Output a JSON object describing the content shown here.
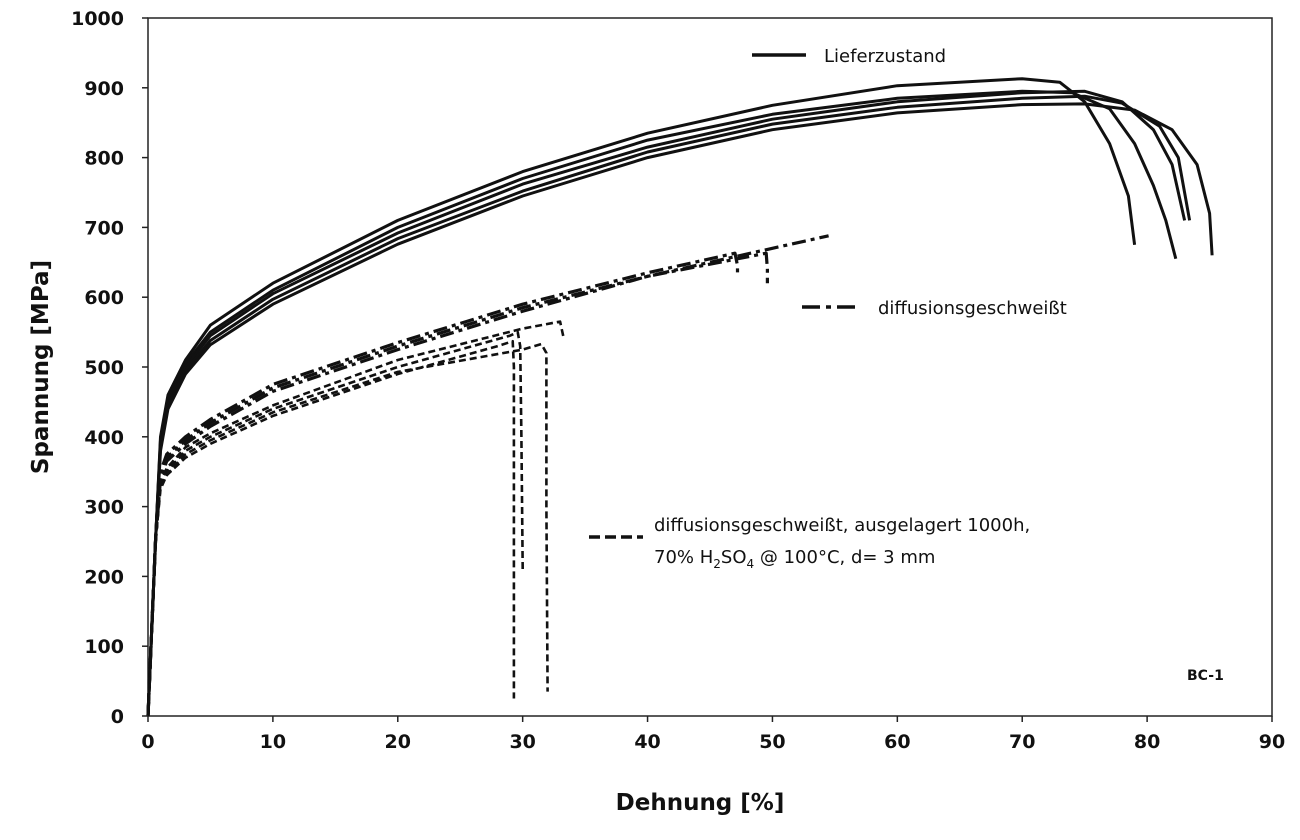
{
  "chart_data": {
    "type": "line",
    "xlabel": "Dehnung [%]",
    "ylabel": "Spannung [MPa]",
    "xlim": [
      0,
      90
    ],
    "ylim": [
      0,
      1000
    ],
    "xticks": [
      "0",
      "10",
      "20",
      "30",
      "40",
      "50",
      "60",
      "70",
      "80",
      "90"
    ],
    "yticks": [
      "0",
      "100",
      "200",
      "300",
      "400",
      "500",
      "600",
      "700",
      "800",
      "900",
      "1000"
    ],
    "grid": false,
    "annotation": "BC-1",
    "legend": [
      {
        "label": "Lieferzustand",
        "style": "solid"
      },
      {
        "label": "diffusionsgeschweißt",
        "style": "dashdot"
      },
      {
        "label_line1": "diffusionsgeschweißt, ausgelagert 1000h,",
        "label_line2_pre": "70% H",
        "label_line2_sub1": "2",
        "label_line2_mid": "SO",
        "label_line2_sub2": "4",
        "label_line2_post": " @ 100°C, d= 3 mm",
        "style": "dashed"
      }
    ],
    "series": [
      {
        "group": "Lieferzustand",
        "style": "solid",
        "points": [
          [
            0,
            0
          ],
          [
            0.6,
            250
          ],
          [
            1.0,
            400
          ],
          [
            1.6,
            460
          ],
          [
            3,
            510
          ],
          [
            5,
            560
          ],
          [
            10,
            620
          ],
          [
            20,
            710
          ],
          [
            30,
            780
          ],
          [
            40,
            835
          ],
          [
            50,
            875
          ],
          [
            60,
            903
          ],
          [
            70,
            913
          ],
          [
            73,
            908
          ],
          [
            75,
            880
          ],
          [
            77,
            820
          ],
          [
            78.5,
            745
          ],
          [
            79,
            675
          ]
        ]
      },
      {
        "group": "Lieferzustand",
        "style": "solid",
        "points": [
          [
            0,
            0
          ],
          [
            0.6,
            250
          ],
          [
            1.0,
            395
          ],
          [
            1.6,
            455
          ],
          [
            3,
            505
          ],
          [
            5,
            550
          ],
          [
            10,
            610
          ],
          [
            20,
            700
          ],
          [
            30,
            770
          ],
          [
            40,
            825
          ],
          [
            50,
            862
          ],
          [
            60,
            885
          ],
          [
            70,
            895
          ],
          [
            74,
            893
          ],
          [
            77,
            870
          ],
          [
            79,
            820
          ],
          [
            80.5,
            760
          ],
          [
            81.5,
            710
          ],
          [
            82.3,
            655
          ]
        ]
      },
      {
        "group": "Lieferzustand",
        "style": "solid",
        "points": [
          [
            0,
            0
          ],
          [
            0.6,
            250
          ],
          [
            1.0,
            390
          ],
          [
            1.6,
            450
          ],
          [
            3,
            500
          ],
          [
            5,
            545
          ],
          [
            10,
            605
          ],
          [
            20,
            692
          ],
          [
            30,
            762
          ],
          [
            40,
            815
          ],
          [
            50,
            855
          ],
          [
            60,
            880
          ],
          [
            70,
            893
          ],
          [
            75,
            895
          ],
          [
            78,
            880
          ],
          [
            80.5,
            840
          ],
          [
            82,
            790
          ],
          [
            83,
            710
          ]
        ]
      },
      {
        "group": "Lieferzustand",
        "style": "solid",
        "points": [
          [
            0,
            0
          ],
          [
            0.6,
            250
          ],
          [
            1.0,
            385
          ],
          [
            1.6,
            445
          ],
          [
            3,
            495
          ],
          [
            5,
            538
          ],
          [
            10,
            597
          ],
          [
            20,
            684
          ],
          [
            30,
            752
          ],
          [
            40,
            808
          ],
          [
            50,
            848
          ],
          [
            60,
            872
          ],
          [
            70,
            885
          ],
          [
            75,
            888
          ],
          [
            78,
            878
          ],
          [
            81,
            845
          ],
          [
            82.5,
            800
          ],
          [
            83.4,
            710
          ]
        ]
      },
      {
        "group": "Lieferzustand",
        "style": "solid",
        "points": [
          [
            0,
            0
          ],
          [
            0.6,
            250
          ],
          [
            1.0,
            380
          ],
          [
            1.6,
            440
          ],
          [
            3,
            490
          ],
          [
            5,
            532
          ],
          [
            10,
            590
          ],
          [
            20,
            676
          ],
          [
            30,
            745
          ],
          [
            40,
            800
          ],
          [
            50,
            840
          ],
          [
            60,
            864
          ],
          [
            70,
            876
          ],
          [
            75,
            877
          ],
          [
            79,
            868
          ],
          [
            82,
            840
          ],
          [
            84,
            790
          ],
          [
            85,
            720
          ],
          [
            85.2,
            660
          ]
        ]
      },
      {
        "group": "diffusionsgeschweißt",
        "style": "dashdot",
        "points": [
          [
            0,
            0
          ],
          [
            0.6,
            250
          ],
          [
            1.0,
            350
          ],
          [
            1.5,
            375
          ],
          [
            3,
            400
          ],
          [
            5,
            425
          ],
          [
            10,
            475
          ],
          [
            20,
            535
          ],
          [
            30,
            590
          ],
          [
            40,
            635
          ],
          [
            47,
            663
          ],
          [
            47.2,
            645
          ],
          [
            47.2,
            630
          ]
        ]
      },
      {
        "group": "diffusionsgeschweißt",
        "style": "dashdot",
        "points": [
          [
            0,
            0
          ],
          [
            0.6,
            250
          ],
          [
            1.0,
            345
          ],
          [
            1.5,
            370
          ],
          [
            3,
            395
          ],
          [
            5,
            420
          ],
          [
            10,
            470
          ],
          [
            20,
            530
          ],
          [
            30,
            585
          ],
          [
            40,
            630
          ],
          [
            49.5,
            663
          ],
          [
            49.6,
            640
          ],
          [
            49.6,
            620
          ]
        ]
      },
      {
        "group": "diffusionsgeschweißt",
        "style": "dashdot",
        "points": [
          [
            0,
            0
          ],
          [
            0.6,
            250
          ],
          [
            1.0,
            340
          ],
          [
            1.5,
            365
          ],
          [
            3,
            390
          ],
          [
            5,
            415
          ],
          [
            10,
            465
          ],
          [
            20,
            525
          ],
          [
            30,
            580
          ],
          [
            40,
            630
          ],
          [
            50,
            670
          ],
          [
            54.5,
            688
          ]
        ]
      },
      {
        "group": "diffusionsgeschweißt, ausgelagert 1000h, 70% H2SO4 @ 100°C, d= 3 mm",
        "style": "dashed",
        "points": [
          [
            0,
            0
          ],
          [
            0.6,
            250
          ],
          [
            1.0,
            330
          ],
          [
            1.5,
            345
          ],
          [
            3,
            370
          ],
          [
            5,
            390
          ],
          [
            10,
            430
          ],
          [
            20,
            490
          ],
          [
            28,
            530
          ],
          [
            29.2,
            537
          ],
          [
            29.3,
            500
          ],
          [
            29.3,
            300
          ],
          [
            29.3,
            25
          ]
        ]
      },
      {
        "group": "diffusionsgeschweißt, ausgelagert 1000h, 70% H2SO4 @ 100°C, d= 3 mm",
        "style": "dashed",
        "points": [
          [
            0,
            0
          ],
          [
            0.6,
            250
          ],
          [
            1.0,
            330
          ],
          [
            1.5,
            350
          ],
          [
            3,
            380
          ],
          [
            5,
            400
          ],
          [
            10,
            440
          ],
          [
            20,
            500
          ],
          [
            29,
            545
          ],
          [
            29.6,
            550
          ],
          [
            29.8,
            530
          ],
          [
            29.9,
            400
          ],
          [
            30,
            210
          ]
        ]
      },
      {
        "group": "diffusionsgeschweißt, ausgelagert 1000h, 70% H2SO4 @ 100°C, d= 3 mm",
        "style": "dashed",
        "points": [
          [
            0,
            0
          ],
          [
            0.6,
            250
          ],
          [
            1.0,
            325
          ],
          [
            1.5,
            345
          ],
          [
            3,
            375
          ],
          [
            5,
            395
          ],
          [
            10,
            435
          ],
          [
            20,
            493
          ],
          [
            30,
            525
          ],
          [
            31.5,
            533
          ],
          [
            31.9,
            520
          ],
          [
            31.9,
            300
          ],
          [
            32,
            35
          ]
        ]
      },
      {
        "group": "diffusionsgeschweißt, ausgelagert 1000h, 70% H2SO4 @ 100°C, d= 3 mm",
        "style": "dashed",
        "points": [
          [
            0,
            0
          ],
          [
            0.6,
            250
          ],
          [
            1.0,
            335
          ],
          [
            1.5,
            355
          ],
          [
            3,
            385
          ],
          [
            5,
            405
          ],
          [
            10,
            445
          ],
          [
            20,
            510
          ],
          [
            30,
            555
          ],
          [
            33,
            565
          ],
          [
            33.3,
            540
          ]
        ]
      }
    ]
  }
}
